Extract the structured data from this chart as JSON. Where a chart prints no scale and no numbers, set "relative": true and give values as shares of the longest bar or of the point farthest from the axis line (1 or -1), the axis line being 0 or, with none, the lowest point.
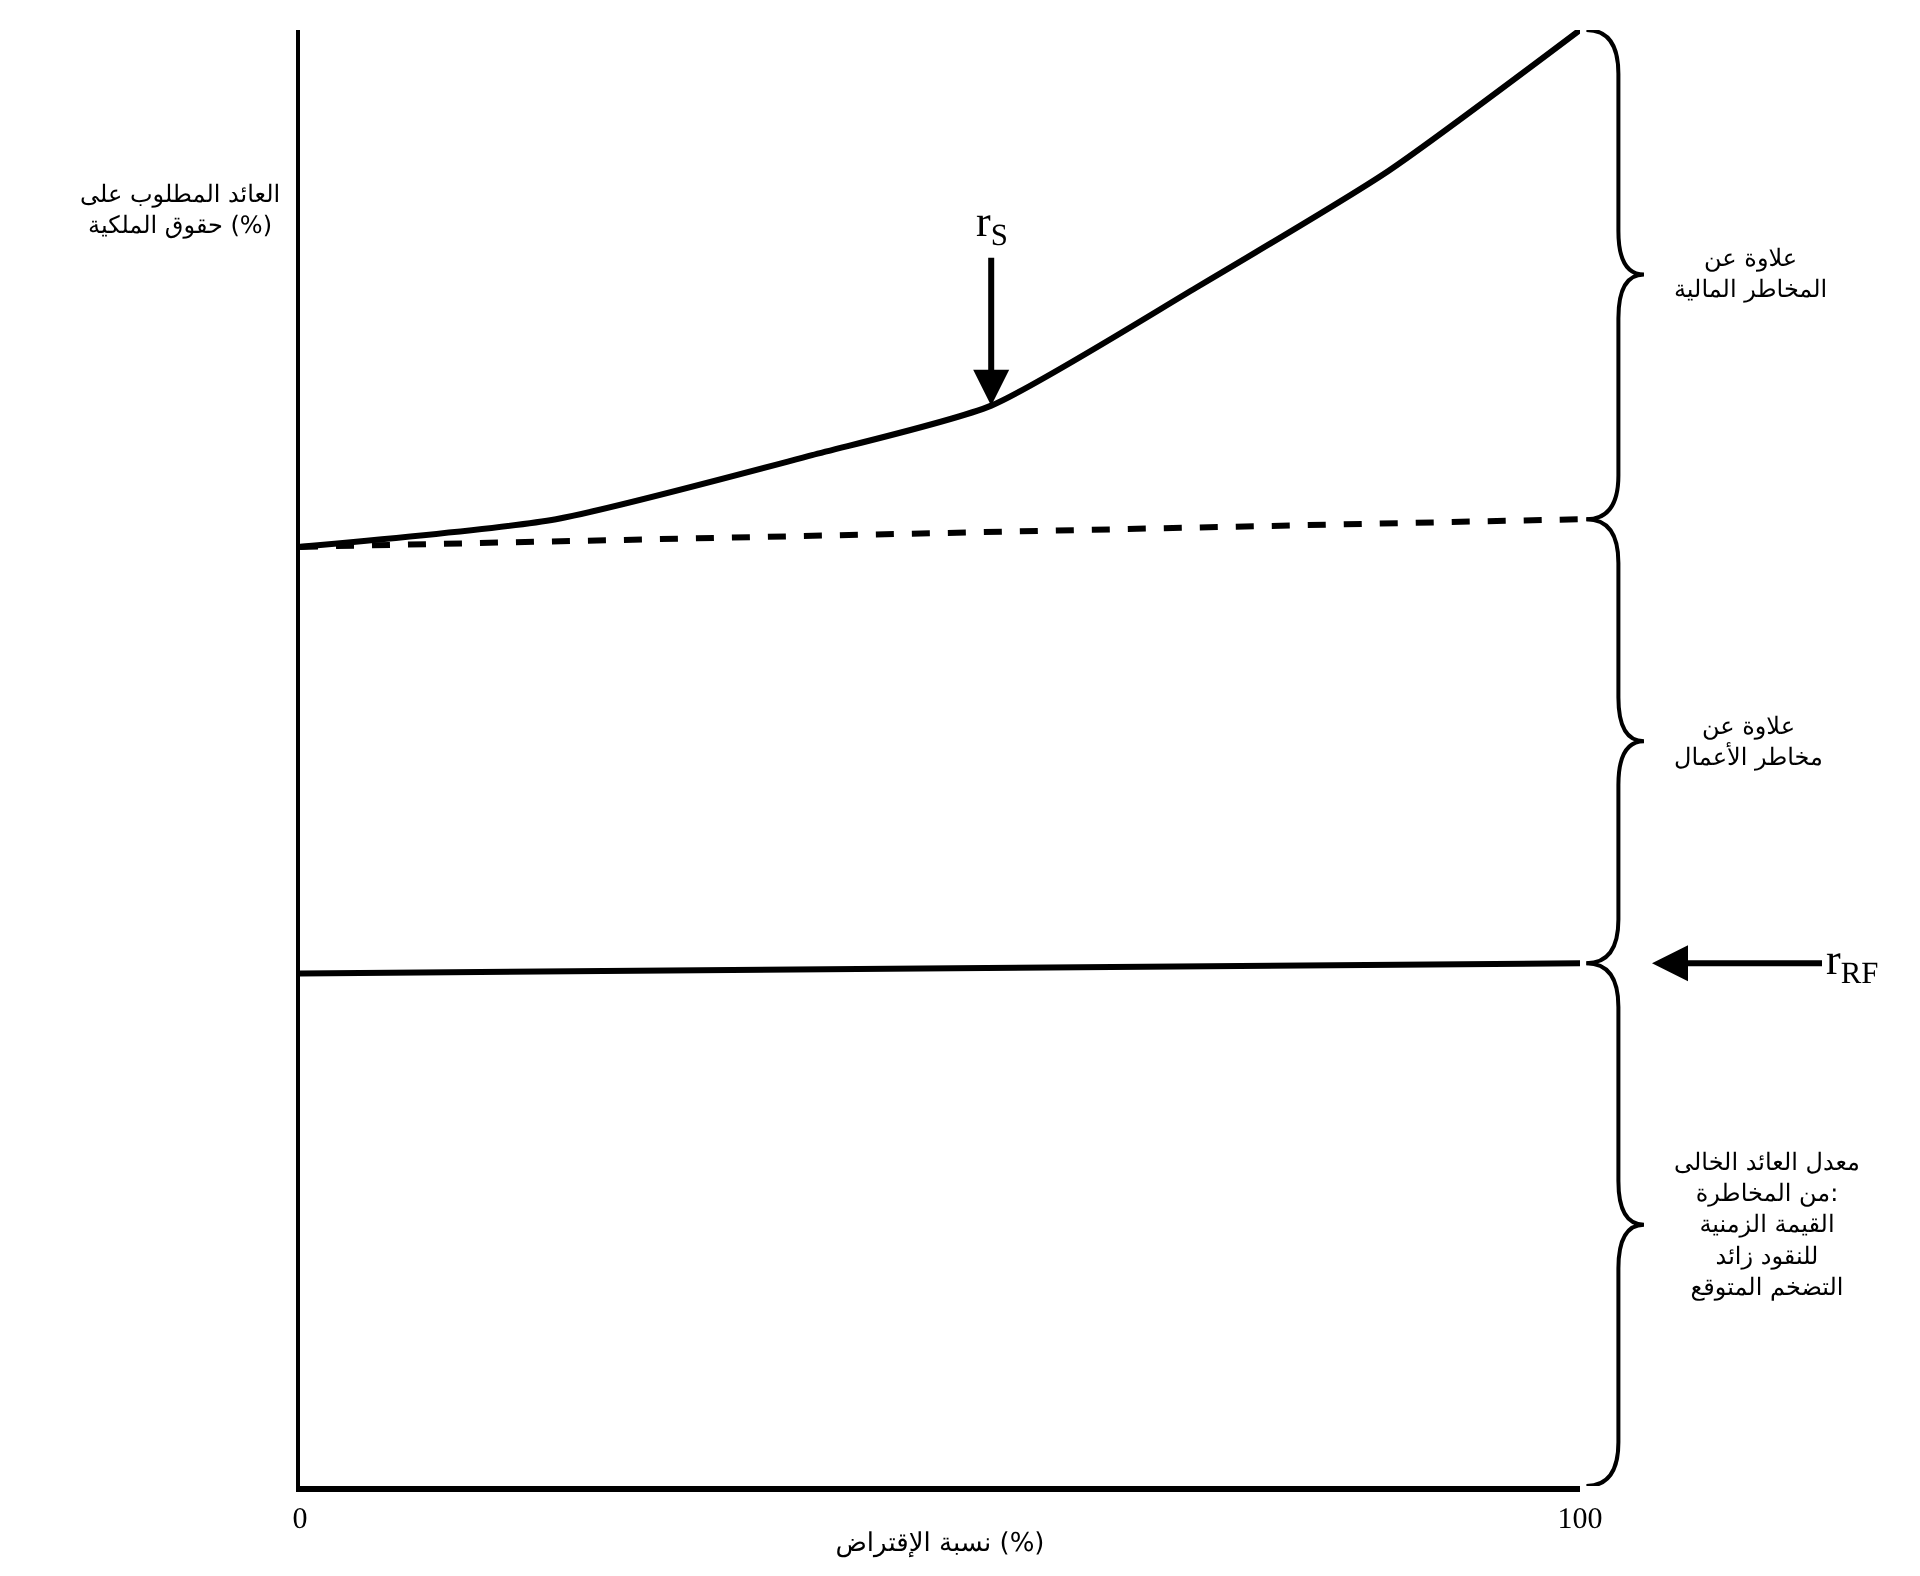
{
  "chart_data": {
    "type": "line",
    "relative": true,
    "xlabel": "نسبة الإقتراض (%)",
    "ylabel": "العائد المطلوب على\nحقوق الملكية (%)",
    "xlim": [
      0,
      100
    ],
    "xticks": [
      0,
      100
    ],
    "series": [
      {
        "color": "#000000",
        "line_style": "solid",
        "x": [
          0,
          20,
          40,
          54,
          70,
          85,
          100
        ],
        "values": [
          0.645,
          0.664,
          0.708,
          0.742,
          0.823,
          0.903,
          1.0
        ]
      },
      {
        "color": "#000000",
        "line_style": "dashed",
        "x": [
          0,
          100
        ],
        "values": [
          0.645,
          0.664
        ]
      },
      {
        "color": "#000000",
        "line_style": "solid",
        "x": [
          0,
          100
        ],
        "values": [
          0.352,
          0.359
        ]
      }
    ],
    "annotations": [
      {
        "text": "r$_{S}$",
        "x": 54,
        "y": 0.742
      },
      "r$_{RF}$",
      "علاوة عن\nالمخاطر المالية",
      "علاوة عن\nمخاطر الأعمال",
      "معدل العائد الخالى\nمن المخاطرة:\nالقيمة الزمنية\nللنقود زائد\nالتضخم المتوقع"
    ]
  }
}
